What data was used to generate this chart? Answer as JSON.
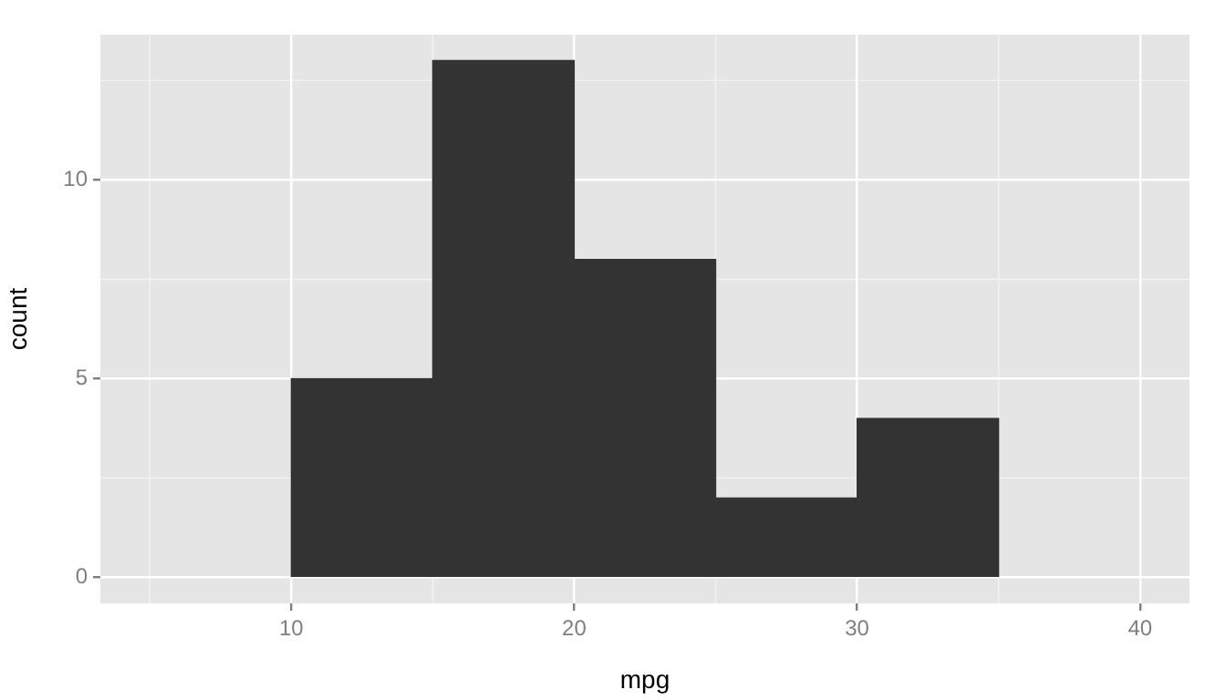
{
  "chart_data": {
    "type": "histogram",
    "xlabel": "mpg",
    "ylabel": "count",
    "bins": [
      10,
      15,
      20,
      25,
      30,
      35
    ],
    "values": [
      5,
      13,
      8,
      2,
      4
    ],
    "color": "#333333",
    "xlim": [
      3.25,
      41.75
    ],
    "xticks": [
      10,
      20,
      30,
      40
    ],
    "ylim": [
      -0.65,
      13.65
    ],
    "yticks": [
      0,
      5,
      10
    ],
    "grid": true
  }
}
